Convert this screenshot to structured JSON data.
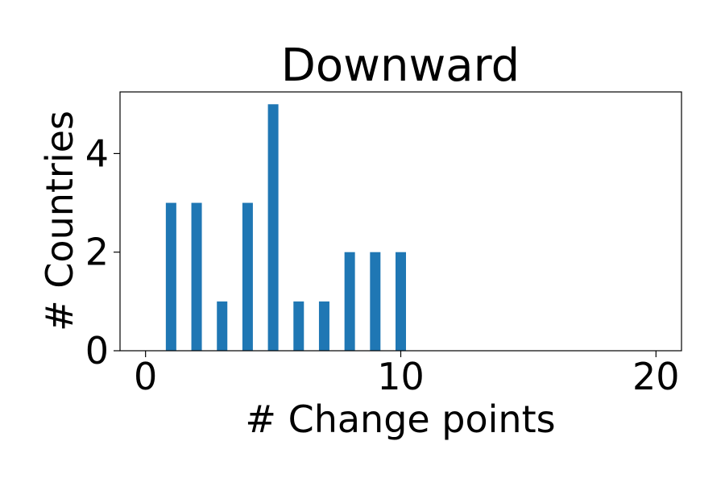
{
  "chart_data": {
    "type": "bar",
    "title": "Downward",
    "xlabel": "# Change points",
    "ylabel": "# Countries",
    "x": [
      1,
      2,
      3,
      4,
      5,
      6,
      7,
      8,
      9,
      10
    ],
    "values": [
      3,
      3,
      1,
      3,
      5,
      1,
      1,
      2,
      2,
      2
    ],
    "xlim": [
      -1,
      21
    ],
    "ylim": [
      0,
      5.25
    ],
    "xticks": [
      0,
      10,
      20
    ],
    "yticks": [
      0,
      2,
      4
    ],
    "bar_color": "#1f77b4",
    "grid": false,
    "legend": "none"
  }
}
